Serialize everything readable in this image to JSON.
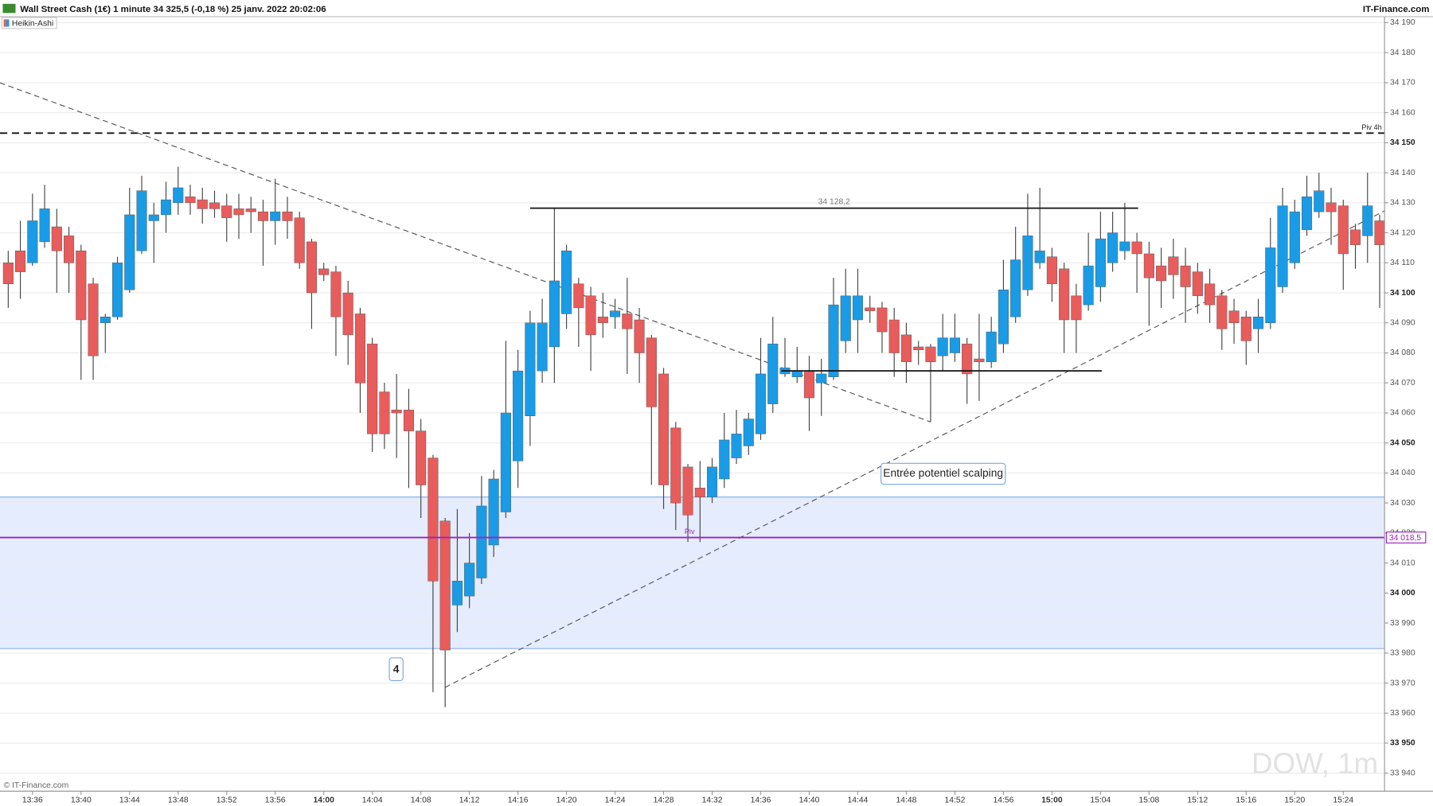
{
  "chart_data": {
    "type": "candlestick",
    "title": "Wall Street Cash (1€) 1 minute 34 325,5 (-0,18 %) 25 janv. 2022 20:02:06",
    "source": "IT-Finance.com",
    "copyright": "© IT-Finance.com",
    "watermark": "DOW, 1m",
    "categories": [
      null,
      null,
      "13:36",
      null,
      null,
      null,
      "13:40",
      null,
      null,
      null,
      "13:44",
      null,
      null,
      null,
      "13:48",
      null,
      null,
      null,
      "13:52",
      null,
      null,
      null,
      "13:56",
      null,
      null,
      null,
      "14:00",
      null,
      null,
      null,
      "14:04",
      null,
      null,
      null,
      "14:08",
      null,
      null,
      null,
      "14:12",
      null,
      null,
      null,
      "14:16",
      null,
      null,
      null,
      "14:20",
      null,
      null,
      null,
      "14:24",
      null,
      null,
      null,
      "14:28",
      null,
      null,
      null,
      "14:32",
      null,
      null,
      null,
      "14:36",
      null,
      null,
      null,
      "14:40",
      null,
      null,
      null,
      "14:44",
      null,
      null,
      null,
      "14:48",
      null,
      null,
      null,
      "14:52",
      null,
      null,
      null,
      "14:56",
      null,
      null,
      null,
      "15:00",
      null,
      null,
      null,
      "15:04",
      null,
      null,
      null,
      "15:08",
      null,
      null,
      null,
      "15:12",
      null,
      null,
      null,
      "15:16",
      null,
      null,
      null,
      "15:20",
      null,
      null,
      null,
      "15:24",
      null,
      null,
      null
    ],
    "series": [
      {
        "name": "Heikin-Ashi",
        "up_color": "#1a9be6",
        "down_color": "#e85c5c",
        "open": [
          34110,
          34114,
          34110,
          34117,
          34122,
          34119,
          34114,
          34103,
          34090,
          34092,
          34101,
          34114,
          34124,
          34126,
          34130,
          34132,
          34131,
          34130,
          34129,
          34128,
          34128,
          34127,
          34124,
          34127,
          34125,
          34117,
          34108,
          34107,
          34100,
          34093,
          34083,
          34067,
          34061,
          34061,
          34054,
          34045,
          34024,
          33996,
          33999,
          34005,
          34016,
          34027,
          34044,
          34059,
          34074,
          34082,
          34093,
          34103,
          34099,
          34092,
          34092,
          34093,
          34091,
          34085,
          34073,
          34055,
          34042,
          34035,
          34032,
          34038,
          34045,
          34049,
          34053,
          34063,
          34073,
          34072,
          34074,
          34070,
          34072,
          34084,
          34091,
          34095,
          34095,
          34091,
          34086,
          34082,
          34082,
          34079,
          34080,
          34083,
          34078,
          34077,
          34083,
          34092,
          34101,
          34110,
          34112,
          34108,
          34099,
          34096,
          34102,
          34110,
          34114,
          34117,
          34113,
          34109,
          34112,
          34109,
          34107,
          34103,
          34099,
          34094,
          34092,
          34088,
          34090,
          34102,
          34110,
          34121,
          34127,
          34130,
          34129,
          34121,
          34119,
          34124
        ],
        "high": [
          34114,
          34124,
          34133,
          34136,
          34128,
          34122,
          34116,
          34105,
          34093,
          34112,
          34135,
          34139,
          34130,
          34137,
          34142,
          34136,
          34135,
          34134,
          34133,
          34133,
          34132,
          34131,
          34138,
          34132,
          34127,
          34118,
          34110,
          34109,
          34104,
          34095,
          34085,
          34070,
          34073,
          34068,
          34058,
          34046,
          34025,
          34028,
          34020,
          34039,
          34041,
          34084,
          34081,
          34094,
          34098,
          34128,
          34116,
          34105,
          34102,
          34100,
          34098,
          34105,
          34095,
          34086,
          34075,
          34057,
          34043,
          34044,
          34045,
          34060,
          34061,
          34060,
          34085,
          34092,
          34085,
          34082,
          34079,
          34078,
          34105,
          34108,
          34108,
          34099,
          34097,
          34095,
          34090,
          34084,
          34083,
          34093,
          34093,
          34085,
          34093,
          34092,
          34111,
          34122,
          34133,
          34135,
          34115,
          34110,
          34103,
          34120,
          34127,
          34127,
          34130,
          34120,
          34117,
          34115,
          34118,
          34115,
          34110,
          34108,
          34101,
          34098,
          34094,
          34098,
          34125,
          34135,
          34131,
          34139,
          34140,
          34135,
          34131,
          34123,
          34140,
          34126
        ],
        "low": [
          34095,
          34098,
          34109,
          34115,
          34100,
          34100,
          34071,
          34071,
          34080,
          34091,
          34100,
          34113,
          34110,
          34120,
          34126,
          34126,
          34123,
          34125,
          34117,
          34118,
          34120,
          34109,
          34116,
          34118,
          34108,
          34088,
          34104,
          34079,
          34076,
          34060,
          34047,
          34048,
          34045,
          34035,
          34025,
          33967,
          33962,
          33987,
          33995,
          34003,
          34012,
          34025,
          34035,
          34049,
          34070,
          34070,
          34088,
          34082,
          34074,
          34085,
          34088,
          34073,
          34070,
          34036,
          34028,
          34021,
          34017,
          34017,
          34030,
          34035,
          34043,
          34046,
          34051,
          34060,
          34072,
          34070,
          34054,
          34059,
          34071,
          34080,
          34080,
          34090,
          34080,
          34072,
          34070,
          34076,
          34057,
          34074,
          34077,
          34063,
          34064,
          34075,
          34080,
          34090,
          34099,
          34108,
          34097,
          34080,
          34080,
          34094,
          34097,
          34107,
          34111,
          34100,
          34089,
          34095,
          34098,
          34090,
          34093,
          34090,
          34081,
          34083,
          34076,
          34080,
          34088,
          34100,
          34108,
          34119,
          34125,
          34116,
          34101,
          34108,
          34110,
          34095
        ],
        "close": [
          34103,
          34107,
          34124,
          34128,
          34114,
          34110,
          34091,
          34079,
          34092,
          34110,
          34126,
          34134,
          34126,
          34131,
          34135,
          34130,
          34128,
          34128,
          34125,
          34126,
          34127,
          34124,
          34127,
          34124,
          34110,
          34100,
          34106,
          34092,
          34086,
          34070,
          34053,
          34053,
          34060,
          34054,
          34036,
          34004,
          33981,
          34004,
          34010,
          34029,
          34038,
          34060,
          34074,
          34090,
          34090,
          34104,
          34114,
          34095,
          34086,
          34090,
          34094,
          34088,
          34080,
          34062,
          34036,
          34030,
          34026,
          34032,
          34042,
          34051,
          34053,
          34058,
          34073,
          34083,
          34075,
          34074,
          34065,
          34073,
          34096,
          34099,
          34099,
          34094,
          34087,
          34080,
          34077,
          34081,
          34077,
          34085,
          34085,
          34073,
          34077,
          34087,
          34101,
          34111,
          34119,
          34114,
          34103,
          34091,
          34091,
          34109,
          34118,
          34120,
          34117,
          34113,
          34105,
          34104,
          34106,
          34102,
          34099,
          34096,
          34088,
          34090,
          34084,
          34092,
          34115,
          34129,
          34127,
          34132,
          34134,
          34127,
          34113,
          34116,
          34129,
          34116
        ]
      }
    ],
    "ylim": [
      33934,
      34192
    ],
    "yticks": [
      {
        "value": 33940,
        "label": "33 940"
      },
      {
        "value": 33950,
        "label": "33 950"
      },
      {
        "value": 33960,
        "label": "33 960"
      },
      {
        "value": 33970,
        "label": "33 970"
      },
      {
        "value": 33980,
        "label": "33 980"
      },
      {
        "value": 33990,
        "label": "33 990"
      },
      {
        "value": 34000,
        "label": "34 000"
      },
      {
        "value": 34010,
        "label": "34 010"
      },
      {
        "value": 34020,
        "label": "34 020"
      },
      {
        "value": 34030,
        "label": "34 030"
      },
      {
        "value": 34040,
        "label": "34 040"
      },
      {
        "value": 34050,
        "label": "34 050"
      },
      {
        "value": 34060,
        "label": "34 060"
      },
      {
        "value": 34070,
        "label": "34 070"
      },
      {
        "value": 34080,
        "label": "34 080"
      },
      {
        "value": 34090,
        "label": "34 090"
      },
      {
        "value": 34100,
        "label": "34 100"
      },
      {
        "value": 34110,
        "label": "34 110"
      },
      {
        "value": 34120,
        "label": "34 120"
      },
      {
        "value": 34130,
        "label": "34 130"
      },
      {
        "value": 34140,
        "label": "34 140"
      },
      {
        "value": 34150,
        "label": "34 150"
      },
      {
        "value": 34160,
        "label": "34 160"
      },
      {
        "value": 34170,
        "label": "34 170"
      },
      {
        "value": 34180,
        "label": "34 180"
      },
      {
        "value": 34190,
        "label": "34 190"
      }
    ],
    "grid": true,
    "zone": {
      "from": 33981.5,
      "to": 34032
    },
    "pivot_4h": {
      "value": 34153.2,
      "label": "Piv 4h"
    },
    "pivot": {
      "value": 34018.5,
      "label": "34 018,5",
      "marker": "Piv"
    },
    "segments": [
      {
        "value": 34128.2,
        "label": "34 128,2",
        "x": [
          43,
          93.1
        ]
      },
      {
        "value": 34074,
        "x": [
          63.7,
          90.1
        ]
      }
    ],
    "trendlines": [
      {
        "x": [
          -0.7,
          76
        ],
        "y": [
          34170,
          34057
        ]
      },
      {
        "x": [
          36,
          113.4
        ],
        "y": [
          33968.6,
          34127.3
        ]
      }
    ],
    "annotations": [
      "Entrée potentiel scalping",
      "4"
    ]
  }
}
